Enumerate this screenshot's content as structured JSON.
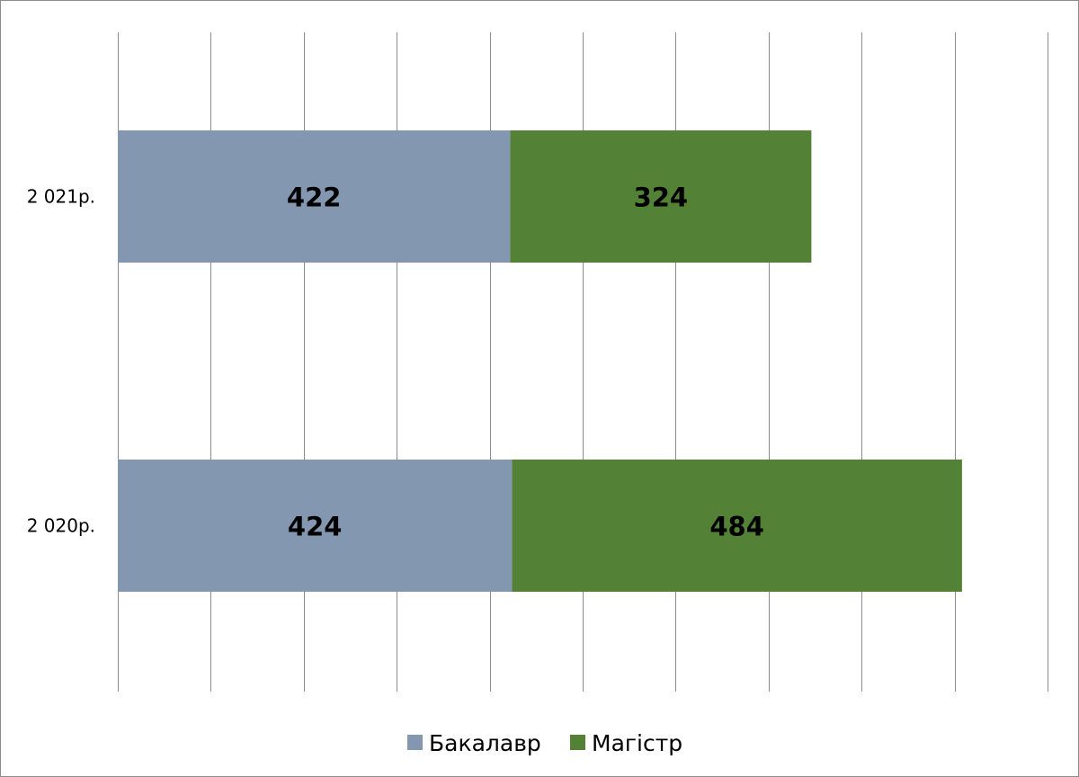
{
  "chart_data": {
    "type": "bar",
    "orientation": "horizontal",
    "stacked": true,
    "categories": [
      "2 021р.",
      "2 020р."
    ],
    "series": [
      {
        "name": "Бакалавр",
        "values": [
          422,
          424
        ],
        "color": "#8497B0"
      },
      {
        "name": "Магістр",
        "values": [
          324,
          484
        ],
        "color": "#538135"
      }
    ],
    "data_labels": [
      [
        "422",
        "324"
      ],
      [
        "424",
        "484"
      ]
    ],
    "xlim": [
      0,
      1000
    ],
    "x_gridlines_step": 100,
    "x_tick_labels_visible": false,
    "grid": true,
    "legend": {
      "position": "bottom"
    }
  }
}
